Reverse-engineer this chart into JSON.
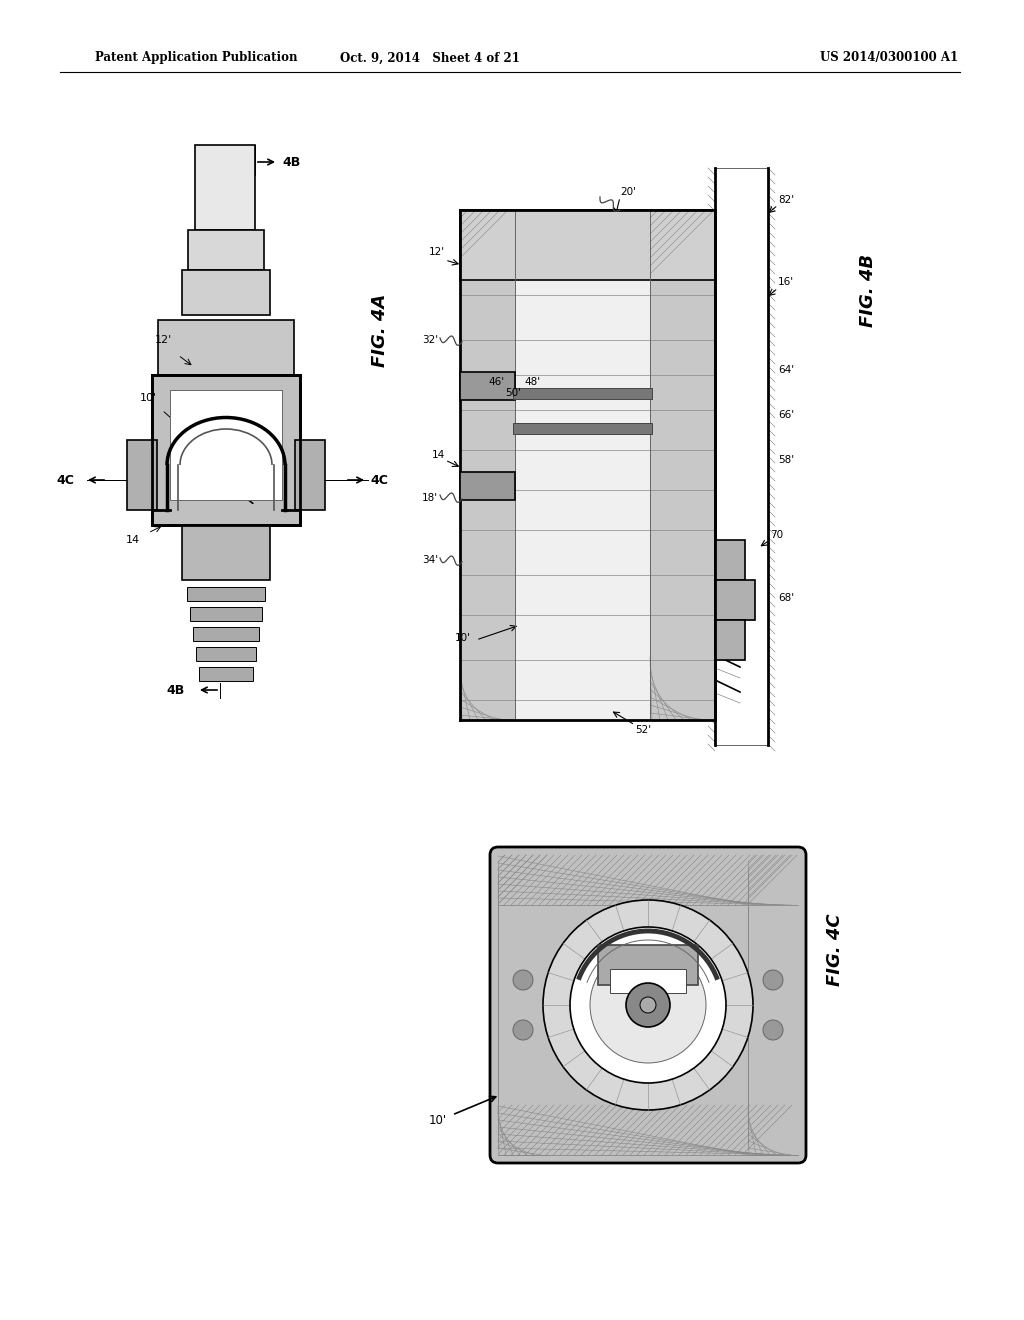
{
  "bg_color": "#ffffff",
  "line_color": "#000000",
  "gray_light": "#cccccc",
  "gray_mid": "#888888",
  "gray_dark": "#444444",
  "header": {
    "left": "Patent Application Publication",
    "center": "Oct. 9, 2014   Sheet 4 of 21",
    "right": "US 2014/0300100 A1"
  },
  "fig4a_label": "FIG. 4A",
  "fig4b_label": "FIG. 4B",
  "fig4c_label": "FIG. 4C",
  "page_width": 10.24,
  "page_height": 13.2
}
